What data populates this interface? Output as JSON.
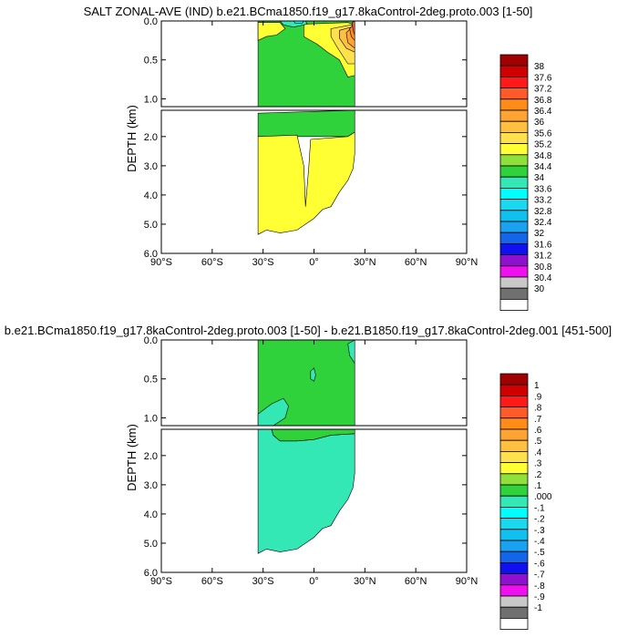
{
  "chart_data": [
    {
      "type": "contour",
      "title": "SALT ZONAL-AVE (IND) b.e21.BCma1850.f19_g17.8kaControl-2deg.proto.003 [1-50]",
      "ylabel": "DEPTH (km)",
      "x_ticks": [
        "90°S",
        "60°S",
        "30°S",
        "0°",
        "30°N",
        "60°N",
        "90°N"
      ],
      "x_tick_values": [
        -90,
        -60,
        -30,
        0,
        30,
        60,
        90
      ],
      "xlim": [
        -90,
        90
      ],
      "upper_ylim": [
        0.0,
        1.1
      ],
      "upper_ticks": [
        "0.0",
        "0.5",
        "1.0"
      ],
      "upper_tick_values": [
        0.0,
        0.5,
        1.0
      ],
      "lower_ylim": [
        1.1,
        6.0
      ],
      "lower_ticks": [
        "2.0",
        "3.0",
        "4.0",
        "5.0",
        "6.0"
      ],
      "lower_tick_values": [
        2.0,
        3.0,
        4.0,
        5.0,
        6.0
      ],
      "colorbar": {
        "labels": [
          "38",
          "37.6",
          "37.2",
          "36.8",
          "36.4",
          "36",
          "35.6",
          "35.2",
          "34.8",
          "34.4",
          "34",
          "33.6",
          "33.2",
          "32.8",
          "32.4",
          "32",
          "31.6",
          "31.2",
          "30.8",
          "30.4",
          "30"
        ],
        "colors": [
          "#a00000",
          "#d00000",
          "#ff1a1a",
          "#ff5a2a",
          "#ff8c19",
          "#ffa333",
          "#ffc042",
          "#ffe14d",
          "#ffff33",
          "#8fe03a",
          "#2fd23a",
          "#33e8b4",
          "#00ffff",
          "#1ad8ee",
          "#10c0ee",
          "#1aa2f0",
          "#1565ea",
          "#1010f0",
          "#9010d0",
          "#ee10ee",
          "#c8c8c8",
          "#707070",
          "#ffffff"
        ]
      },
      "regions": {
        "upper": [
          {
            "level": "34.4",
            "color": "#2fd23a",
            "poly": [
              [
                -33,
                0
              ],
              [
                24,
                0
              ],
              [
                24,
                1.1
              ],
              [
                -33,
                1.1
              ]
            ]
          },
          {
            "level": "34.8",
            "color": "#ffff33",
            "poly": [
              [
                -33,
                0.02
              ],
              [
                -20,
                0.02
              ],
              [
                -17,
                0.1
              ],
              [
                -22,
                0.18
              ],
              [
                -28,
                0.2
              ],
              [
                -33,
                0.25
              ]
            ]
          },
          {
            "level": "34.8",
            "color": "#ffff33",
            "poly": [
              [
                -6,
                0.04
              ],
              [
                20,
                0.02
              ],
              [
                24,
                0.05
              ],
              [
                24,
                0.7
              ],
              [
                20,
                0.72
              ],
              [
                15,
                0.5
              ],
              [
                8,
                0.4
              ],
              [
                2,
                0.3
              ],
              [
                -6,
                0.2
              ]
            ]
          },
          {
            "level": "35.2",
            "color": "#ffe14d",
            "poly": [
              [
                10,
                0.1
              ],
              [
                22,
                0.05
              ],
              [
                24,
                0.05
              ],
              [
                24,
                0.55
              ],
              [
                20,
                0.55
              ],
              [
                14,
                0.35
              ],
              [
                10,
                0.2
              ]
            ]
          },
          {
            "level": "35.6",
            "color": "#ffc042",
            "poly": [
              [
                15,
                0.12
              ],
              [
                22,
                0.08
              ],
              [
                24,
                0.08
              ],
              [
                24,
                0.4
              ],
              [
                19,
                0.35
              ],
              [
                15,
                0.22
              ]
            ]
          },
          {
            "level": "36",
            "color": "#ffa333",
            "poly": [
              [
                19,
                0.15
              ],
              [
                24,
                0.05
              ],
              [
                24,
                0.35
              ],
              [
                20,
                0.28
              ]
            ]
          },
          {
            "level": "36.4",
            "color": "#ff8c19",
            "poly": [
              [
                21,
                0.1
              ],
              [
                24,
                0.03
              ],
              [
                24,
                0.25
              ],
              [
                22,
                0.2
              ]
            ]
          },
          {
            "level": "36.8",
            "color": "#ff5a2a",
            "poly": [
              [
                22.5,
                0.02
              ],
              [
                24,
                0
              ],
              [
                24,
                0.18
              ],
              [
                23,
                0.12
              ]
            ]
          },
          {
            "level": "34",
            "color": "#33e8b4",
            "poly": [
              [
                -20,
                0
              ],
              [
                -5,
                0
              ],
              [
                -4,
                0.04
              ],
              [
                -12,
                0.08
              ],
              [
                -18,
                0.05
              ]
            ]
          },
          {
            "level": "33.6",
            "color": "#00ffff",
            "poly": [
              [
                -12,
                0
              ],
              [
                -6,
                0
              ],
              [
                -7,
                0.03
              ],
              [
                -11,
                0.03
              ]
            ]
          }
        ],
        "lower": [
          {
            "level": "34.4",
            "color": "#2fd23a",
            "poly": [
              [
                -33,
                1.2
              ],
              [
                24,
                1.1
              ],
              [
                24,
                1.85
              ],
              [
                20,
                2.0
              ],
              [
                -33,
                2.0
              ]
            ]
          },
          {
            "level": "34.8",
            "color": "#ffff33",
            "poly": [
              [
                -33,
                2.0
              ],
              [
                -10,
                1.95
              ],
              [
                -6,
                3.0
              ],
              [
                -5,
                4.4
              ],
              [
                -3,
                3.0
              ],
              [
                -2,
                2.1
              ],
              [
                20,
                2.0
              ],
              [
                24,
                1.85
              ],
              [
                24,
                2.6
              ],
              [
                23,
                3.1
              ],
              [
                20,
                3.5
              ],
              [
                15,
                3.9
              ],
              [
                10,
                4.4
              ],
              [
                5,
                4.5
              ],
              [
                0,
                4.8
              ],
              [
                -10,
                5.2
              ],
              [
                -20,
                5.3
              ],
              [
                -28,
                5.2
              ],
              [
                -33,
                5.35
              ]
            ]
          }
        ]
      }
    },
    {
      "type": "contour",
      "title": "b.e21.BCma1850.f19_g17.8kaControl-2deg.proto.003 [1-50] - b.e21.B1850.f19_g17.8kaControl-2deg.001 [451-500]",
      "ylabel": "DEPTH (km)",
      "x_ticks": [
        "90°S",
        "60°S",
        "30°S",
        "0°",
        "30°N",
        "60°N",
        "90°N"
      ],
      "x_tick_values": [
        -90,
        -60,
        -30,
        0,
        30,
        60,
        90
      ],
      "xlim": [
        -90,
        90
      ],
      "upper_ylim": [
        0.0,
        1.1
      ],
      "upper_ticks": [
        "0.0",
        "0.5",
        "1.0"
      ],
      "upper_tick_values": [
        0.0,
        0.5,
        1.0
      ],
      "lower_ylim": [
        1.1,
        6.0
      ],
      "lower_ticks": [
        "2.0",
        "3.0",
        "4.0",
        "5.0",
        "6.0"
      ],
      "lower_tick_values": [
        2.0,
        3.0,
        4.0,
        5.0,
        6.0
      ],
      "colorbar": {
        "labels": [
          "1",
          ".9",
          ".8",
          ".7",
          ".6",
          ".5",
          ".4",
          ".3",
          ".2",
          ".1",
          ".000",
          "-.1",
          "-.2",
          "-.3",
          "-.4",
          "-.5",
          "-.6",
          "-.7",
          "-.8",
          "-.9",
          "-1"
        ],
        "colors": [
          "#a00000",
          "#d00000",
          "#ff1a1a",
          "#ff5a2a",
          "#ff8c19",
          "#ffa333",
          "#ffc042",
          "#ffe14d",
          "#ffff33",
          "#8fe03a",
          "#2fd23a",
          "#33e8b4",
          "#00ffff",
          "#1ad8ee",
          "#10c0ee",
          "#1aa2f0",
          "#1565ea",
          "#1010f0",
          "#9010d0",
          "#ee10ee",
          "#c8c8c8",
          "#707070",
          "#ffffff"
        ]
      },
      "regions": {
        "upper": [
          {
            "level": ".000",
            "color": "#2fd23a",
            "poly": [
              [
                -33,
                0
              ],
              [
                24,
                0
              ],
              [
                24,
                1.1
              ],
              [
                -33,
                1.1
              ]
            ]
          },
          {
            "level": "-.1",
            "color": "#33e8b4",
            "poly": [
              [
                -33,
                0.95
              ],
              [
                -25,
                0.82
              ],
              [
                -18,
                0.75
              ],
              [
                -15,
                0.85
              ],
              [
                -17,
                1.0
              ],
              [
                -24,
                1.1
              ],
              [
                -33,
                1.1
              ]
            ]
          },
          {
            "level": "-.1",
            "color": "#33e8b4",
            "poly": [
              [
                -2,
                0.4
              ],
              [
                0,
                0.36
              ],
              [
                1,
                0.45
              ],
              [
                0,
                0.53
              ],
              [
                -2,
                0.5
              ]
            ]
          },
          {
            "level": "-.1",
            "color": "#33e8b4",
            "poly": [
              [
                20,
                0.05
              ],
              [
                24,
                0.0
              ],
              [
                24,
                0.3
              ],
              [
                21,
                0.2
              ]
            ]
          }
        ],
        "lower": [
          {
            "level": "-.1",
            "color": "#33e8b4",
            "poly": [
              [
                -33,
                1.1
              ],
              [
                -25,
                1.1
              ],
              [
                -24,
                1.3
              ],
              [
                -20,
                1.5
              ],
              [
                -10,
                1.5
              ],
              [
                0,
                1.45
              ],
              [
                10,
                1.3
              ],
              [
                24,
                1.25
              ],
              [
                24,
                2.6
              ],
              [
                23,
                3.1
              ],
              [
                20,
                3.5
              ],
              [
                15,
                3.9
              ],
              [
                10,
                4.4
              ],
              [
                5,
                4.5
              ],
              [
                0,
                4.8
              ],
              [
                -10,
                5.2
              ],
              [
                -20,
                5.3
              ],
              [
                -28,
                5.2
              ],
              [
                -33,
                5.35
              ]
            ]
          },
          {
            "level": ".000",
            "color": "#2fd23a",
            "poly": [
              [
                -33,
                1.1
              ],
              [
                24,
                1.1
              ],
              [
                24,
                1.25
              ],
              [
                10,
                1.3
              ],
              [
                0,
                1.45
              ],
              [
                -10,
                1.5
              ],
              [
                -20,
                1.5
              ],
              [
                -24,
                1.3
              ],
              [
                -25,
                1.1
              ]
            ]
          }
        ]
      }
    }
  ]
}
